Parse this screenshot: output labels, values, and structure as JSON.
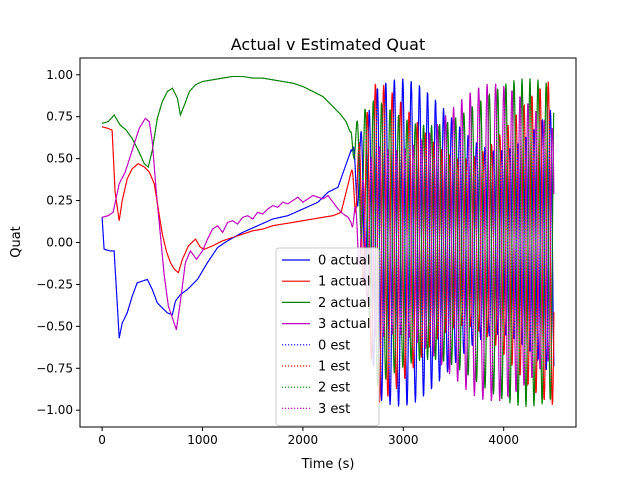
{
  "chart_data": {
    "type": "line",
    "title": "Actual v Estimated Quat",
    "xlabel": "Time (s)",
    "ylabel": "Quat",
    "xlim": [
      -220,
      4720
    ],
    "ylim": [
      -1.1,
      1.1
    ],
    "x_ticks": [
      0,
      1000,
      2000,
      3000,
      4000
    ],
    "y_ticks": [
      -1.0,
      -0.75,
      -0.5,
      -0.25,
      0.0,
      0.25,
      0.5,
      0.75,
      1.0
    ],
    "x_tick_labels": [
      "0",
      "1000",
      "2000",
      "3000",
      "4000"
    ],
    "y_tick_labels": [
      "−1.00",
      "−0.75",
      "−0.50",
      "−0.25",
      "0.00",
      "0.25",
      "0.50",
      "0.75",
      "1.00"
    ],
    "grid": false,
    "legend_position": "lower-center",
    "oscillation_start": 2480,
    "oscillation_end": 4500,
    "series": [
      {
        "name": "0 actual",
        "color": "#0000ff",
        "style": "solid",
        "points": [
          [
            0,
            0.15
          ],
          [
            20,
            -0.04
          ],
          [
            80,
            -0.05
          ],
          [
            120,
            -0.05
          ],
          [
            150,
            -0.35
          ],
          [
            170,
            -0.57
          ],
          [
            200,
            -0.48
          ],
          [
            250,
            -0.42
          ],
          [
            300,
            -0.32
          ],
          [
            350,
            -0.24
          ],
          [
            400,
            -0.23
          ],
          [
            450,
            -0.22
          ],
          [
            500,
            -0.28
          ],
          [
            550,
            -0.36
          ],
          [
            600,
            -0.39
          ],
          [
            650,
            -0.42
          ],
          [
            700,
            -0.43
          ],
          [
            730,
            -0.35
          ],
          [
            780,
            -0.31
          ],
          [
            850,
            -0.28
          ],
          [
            950,
            -0.22
          ],
          [
            1050,
            -0.12
          ],
          [
            1150,
            -0.03
          ],
          [
            1250,
            0.01
          ],
          [
            1400,
            0.06
          ],
          [
            1550,
            0.1
          ],
          [
            1700,
            0.14
          ],
          [
            1850,
            0.16
          ],
          [
            2000,
            0.2
          ],
          [
            2150,
            0.24
          ],
          [
            2250,
            0.3
          ],
          [
            2350,
            0.33
          ],
          [
            2420,
            0.45
          ],
          [
            2480,
            0.55
          ]
        ],
        "osc": {
          "center": 0.0,
          "amp": [
            0.55,
            0.98
          ],
          "phase": 0.0
        }
      },
      {
        "name": "1 actual",
        "color": "#ff0000",
        "style": "solid",
        "points": [
          [
            0,
            0.69
          ],
          [
            60,
            0.68
          ],
          [
            100,
            0.67
          ],
          [
            130,
            0.3
          ],
          [
            170,
            0.13
          ],
          [
            200,
            0.25
          ],
          [
            250,
            0.38
          ],
          [
            300,
            0.44
          ],
          [
            360,
            0.47
          ],
          [
            420,
            0.45
          ],
          [
            470,
            0.42
          ],
          [
            520,
            0.35
          ],
          [
            560,
            0.2
          ],
          [
            600,
            0.05
          ],
          [
            640,
            -0.05
          ],
          [
            680,
            -0.12
          ],
          [
            720,
            -0.16
          ],
          [
            760,
            -0.18
          ],
          [
            800,
            -0.1
          ],
          [
            860,
            -0.02
          ],
          [
            930,
            0.02
          ],
          [
            980,
            -0.03
          ],
          [
            1020,
            -0.04
          ],
          [
            1100,
            -0.02
          ],
          [
            1200,
            0.01
          ],
          [
            1300,
            0.03
          ],
          [
            1400,
            0.05
          ],
          [
            1500,
            0.07
          ],
          [
            1600,
            0.08
          ],
          [
            1700,
            0.1
          ],
          [
            1800,
            0.11
          ],
          [
            1900,
            0.12
          ],
          [
            2000,
            0.13
          ],
          [
            2100,
            0.14
          ],
          [
            2200,
            0.15
          ],
          [
            2300,
            0.16
          ],
          [
            2380,
            0.18
          ],
          [
            2430,
            0.3
          ],
          [
            2480,
            0.42
          ]
        ],
        "osc": {
          "center": 0.0,
          "amp": [
            0.5,
            0.98
          ],
          "phase": 1.57
        }
      },
      {
        "name": "2 actual",
        "color": "#008000",
        "style": "solid",
        "points": [
          [
            0,
            0.71
          ],
          [
            60,
            0.72
          ],
          [
            120,
            0.76
          ],
          [
            180,
            0.7
          ],
          [
            240,
            0.67
          ],
          [
            300,
            0.62
          ],
          [
            360,
            0.55
          ],
          [
            420,
            0.47
          ],
          [
            460,
            0.45
          ],
          [
            500,
            0.55
          ],
          [
            550,
            0.74
          ],
          [
            600,
            0.84
          ],
          [
            650,
            0.9
          ],
          [
            700,
            0.92
          ],
          [
            750,
            0.86
          ],
          [
            780,
            0.76
          ],
          [
            820,
            0.82
          ],
          [
            870,
            0.9
          ],
          [
            930,
            0.94
          ],
          [
            1000,
            0.96
          ],
          [
            1100,
            0.97
          ],
          [
            1200,
            0.98
          ],
          [
            1300,
            0.99
          ],
          [
            1400,
            0.99
          ],
          [
            1500,
            0.98
          ],
          [
            1600,
            0.98
          ],
          [
            1700,
            0.97
          ],
          [
            1800,
            0.96
          ],
          [
            1900,
            0.95
          ],
          [
            2000,
            0.93
          ],
          [
            2100,
            0.9
          ],
          [
            2200,
            0.87
          ],
          [
            2300,
            0.81
          ],
          [
            2380,
            0.76
          ],
          [
            2430,
            0.72
          ],
          [
            2470,
            0.66
          ]
        ],
        "osc": {
          "center": 0.0,
          "amp": [
            0.7,
            0.98
          ],
          "phase": 3.14
        }
      },
      {
        "name": "3 actual",
        "color": "#bf00bf",
        "style": "solid",
        "points": [
          [
            0,
            0.15
          ],
          [
            60,
            0.16
          ],
          [
            110,
            0.18
          ],
          [
            170,
            0.35
          ],
          [
            230,
            0.42
          ],
          [
            300,
            0.55
          ],
          [
            370,
            0.68
          ],
          [
            430,
            0.74
          ],
          [
            470,
            0.72
          ],
          [
            500,
            0.6
          ],
          [
            540,
            0.3
          ],
          [
            580,
            0.05
          ],
          [
            620,
            -0.2
          ],
          [
            660,
            -0.38
          ],
          [
            700,
            -0.45
          ],
          [
            740,
            -0.52
          ],
          [
            780,
            -0.35
          ],
          [
            830,
            -0.12
          ],
          [
            880,
            -0.05
          ],
          [
            940,
            -0.1
          ],
          [
            1000,
            -0.05
          ],
          [
            1050,
            0.02
          ],
          [
            1100,
            0.08
          ],
          [
            1150,
            0.1
          ],
          [
            1200,
            0.06
          ],
          [
            1250,
            0.12
          ],
          [
            1300,
            0.13
          ],
          [
            1350,
            0.11
          ],
          [
            1400,
            0.15
          ],
          [
            1450,
            0.16
          ],
          [
            1500,
            0.14
          ],
          [
            1550,
            0.18
          ],
          [
            1600,
            0.17
          ],
          [
            1650,
            0.2
          ],
          [
            1700,
            0.22
          ],
          [
            1750,
            0.21
          ],
          [
            1800,
            0.24
          ],
          [
            1850,
            0.23
          ],
          [
            1900,
            0.25
          ],
          [
            1950,
            0.27
          ],
          [
            2000,
            0.24
          ],
          [
            2050,
            0.26
          ],
          [
            2100,
            0.28
          ],
          [
            2150,
            0.27
          ],
          [
            2200,
            0.26
          ],
          [
            2250,
            0.28
          ],
          [
            2300,
            0.24
          ],
          [
            2350,
            0.2
          ],
          [
            2400,
            0.17
          ],
          [
            2450,
            0.15
          ],
          [
            2480,
            0.12
          ]
        ],
        "osc": {
          "center": 0.0,
          "amp": [
            0.55,
            0.95
          ],
          "phase": 4.71
        }
      },
      {
        "name": "0 est",
        "color": "#0000ff",
        "style": "dotted",
        "follows": 0
      },
      {
        "name": "1 est",
        "color": "#ff0000",
        "style": "dotted",
        "follows": 1
      },
      {
        "name": "2 est",
        "color": "#008000",
        "style": "dotted",
        "follows": 2
      },
      {
        "name": "3 est",
        "color": "#bf00bf",
        "style": "dotted",
        "follows": 3
      }
    ]
  }
}
